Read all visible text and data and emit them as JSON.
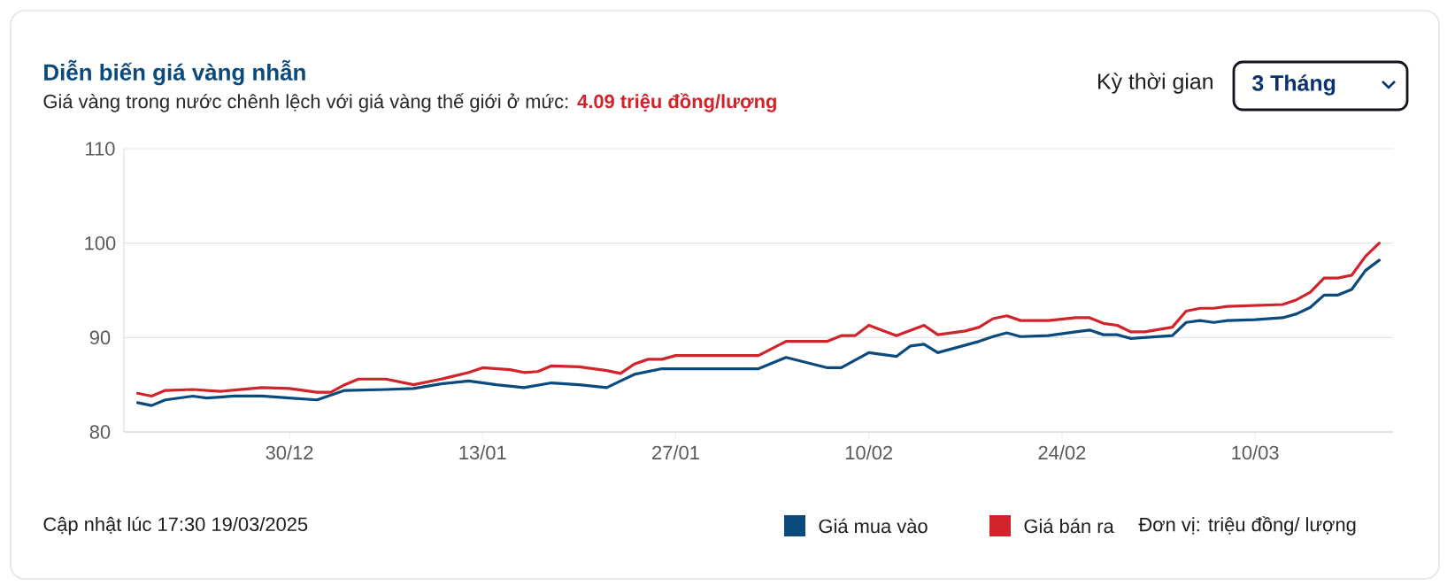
{
  "chart_data": {
    "type": "line",
    "title": "Diễn biến giá vàng nhẫn",
    "subtitle": "Giá vàng trong nước chênh lệch với giá vàng thế giới ở mức:",
    "annotations": [
      "4.09 triệu đồng/lượng",
      "Kỳ thời gian",
      "3 Tháng",
      "Cập nhật lúc 17:30 19/03/2025",
      "Đơn vị: triệu đồng/ lượng"
    ],
    "xlim": [
      "2024-12-18",
      "2025-03-20"
    ],
    "xticks": [
      {
        "value": "2024-12-30",
        "label": "30/12"
      },
      {
        "value": "2025-01-13",
        "label": "13/01"
      },
      {
        "value": "2025-01-27",
        "label": "27/01"
      },
      {
        "value": "2025-02-10",
        "label": "10/02"
      },
      {
        "value": "2025-02-24",
        "label": "24/02"
      },
      {
        "value": "2025-03-10",
        "label": "10/03"
      }
    ],
    "ylim": [
      80,
      110
    ],
    "yticks": [
      80,
      90,
      100,
      110
    ],
    "grid": "y",
    "legend": "bottom right",
    "marker": "none",
    "line_style": "solid",
    "series": [
      {
        "name": "Giá mua vào",
        "color": "#0b4a7c",
        "x": [
          "2024-12-19",
          "2024-12-20",
          "2024-12-21",
          "2024-12-23",
          "2024-12-24",
          "2024-12-26",
          "2024-12-28",
          "2024-12-30",
          "2025-01-01",
          "2025-01-03",
          "2025-01-06",
          "2025-01-08",
          "2025-01-10",
          "2025-01-12",
          "2025-01-14",
          "2025-01-16",
          "2025-01-18",
          "2025-01-20",
          "2025-01-22",
          "2025-01-23",
          "2025-01-24",
          "2025-01-26",
          "2025-02-02",
          "2025-02-04",
          "2025-02-07",
          "2025-02-08",
          "2025-02-10",
          "2025-02-12",
          "2025-02-13",
          "2025-02-14",
          "2025-02-15",
          "2025-02-18",
          "2025-02-19",
          "2025-02-20",
          "2025-02-21",
          "2025-02-23",
          "2025-02-25",
          "2025-02-26",
          "2025-02-27",
          "2025-02-28",
          "2025-03-01",
          "2025-03-04",
          "2025-03-05",
          "2025-03-06",
          "2025-03-07",
          "2025-03-08",
          "2025-03-10",
          "2025-03-12",
          "2025-03-13",
          "2025-03-14",
          "2025-03-15",
          "2025-03-16",
          "2025-03-17",
          "2025-03-18",
          "2025-03-19"
        ],
        "values": [
          83.1,
          82.8,
          83.4,
          83.8,
          83.6,
          83.8,
          83.8,
          83.6,
          83.4,
          84.4,
          84.5,
          84.6,
          85.1,
          85.4,
          85.0,
          84.7,
          85.2,
          85.0,
          84.7,
          85.4,
          86.1,
          86.7,
          86.7,
          87.9,
          86.8,
          86.8,
          88.4,
          88.0,
          89.1,
          89.3,
          88.4,
          89.6,
          90.1,
          90.5,
          90.1,
          90.2,
          90.6,
          90.8,
          90.3,
          90.3,
          89.9,
          90.2,
          91.6,
          91.8,
          91.6,
          91.8,
          91.9,
          92.1,
          92.5,
          93.2,
          94.5,
          94.5,
          95.1,
          97.1,
          98.2
        ]
      },
      {
        "name": "Giá bán ra",
        "color": "#d0232a",
        "x": [
          "2024-12-19",
          "2024-12-20",
          "2024-12-21",
          "2024-12-23",
          "2024-12-25",
          "2024-12-28",
          "2024-12-30",
          "2025-01-01",
          "2025-01-02",
          "2025-01-03",
          "2025-01-04",
          "2025-01-06",
          "2025-01-08",
          "2025-01-10",
          "2025-01-12",
          "2025-01-13",
          "2025-01-15",
          "2025-01-16",
          "2025-01-17",
          "2025-01-18",
          "2025-01-20",
          "2025-01-22",
          "2025-01-23",
          "2025-01-24",
          "2025-01-25",
          "2025-01-26",
          "2025-01-27",
          "2025-02-02",
          "2025-02-04",
          "2025-02-07",
          "2025-02-08",
          "2025-02-09",
          "2025-02-10",
          "2025-02-12",
          "2025-02-14",
          "2025-02-15",
          "2025-02-17",
          "2025-02-18",
          "2025-02-19",
          "2025-02-20",
          "2025-02-21",
          "2025-02-23",
          "2025-02-25",
          "2025-02-26",
          "2025-02-27",
          "2025-02-28",
          "2025-03-01",
          "2025-03-02",
          "2025-03-04",
          "2025-03-05",
          "2025-03-06",
          "2025-03-07",
          "2025-03-08",
          "2025-03-12",
          "2025-03-13",
          "2025-03-14",
          "2025-03-15",
          "2025-03-16",
          "2025-03-17",
          "2025-03-18",
          "2025-03-19"
        ],
        "values": [
          84.1,
          83.8,
          84.4,
          84.5,
          84.3,
          84.7,
          84.6,
          84.2,
          84.2,
          85.0,
          85.6,
          85.6,
          85.0,
          85.6,
          86.3,
          86.8,
          86.6,
          86.3,
          86.4,
          87.0,
          86.9,
          86.5,
          86.2,
          87.2,
          87.7,
          87.7,
          88.1,
          88.1,
          89.6,
          89.6,
          90.2,
          90.2,
          91.3,
          90.2,
          91.3,
          90.3,
          90.7,
          91.1,
          92.0,
          92.3,
          91.8,
          91.8,
          92.1,
          92.1,
          91.5,
          91.3,
          90.6,
          90.6,
          91.1,
          92.8,
          93.1,
          93.1,
          93.3,
          93.5,
          94.0,
          94.8,
          96.3,
          96.3,
          96.6,
          98.6,
          100.0
        ]
      }
    ]
  }
}
